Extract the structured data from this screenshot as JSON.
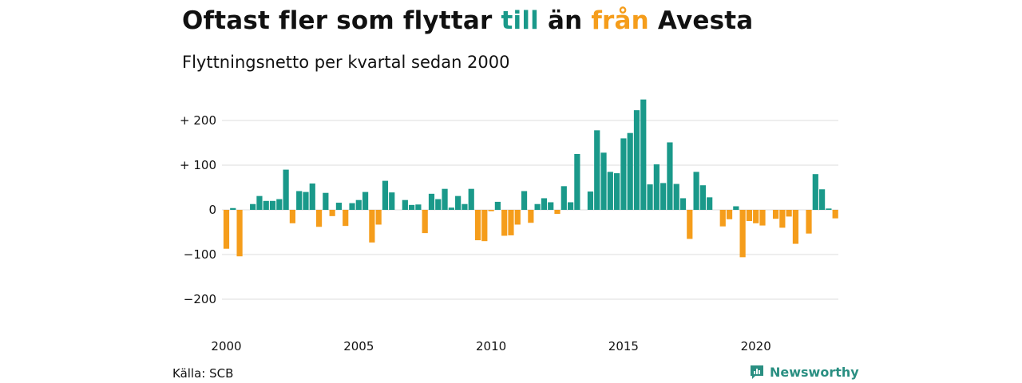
{
  "header": {
    "title_parts": [
      "Oftast fler som flyttar ",
      "till",
      " än ",
      "från",
      " Avesta"
    ],
    "subtitle": "Flyttningsnetto per kvartal sedan 2000"
  },
  "footer": {
    "source": "Källa: SCB",
    "brand": "Newsworthy"
  },
  "colors": {
    "positive": "#1a998a",
    "negative": "#f59d1b",
    "brand": "#2a8f82",
    "grid": "#dddddd",
    "text": "#111111"
  },
  "chart_data": {
    "type": "bar",
    "start_year": 2000,
    "x_ticks": [
      "2000",
      "2005",
      "2010",
      "2015",
      "2020"
    ],
    "y_ticks": [
      {
        "value": 200,
        "label": "+ 200"
      },
      {
        "value": 100,
        "label": "+ 100"
      },
      {
        "value": 0,
        "label": "0"
      },
      {
        "value": -100,
        "label": "−100"
      },
      {
        "value": -200,
        "label": "−200"
      }
    ],
    "ylim": [
      -200,
      250
    ],
    "grid": true,
    "values": [
      -87,
      4,
      -104,
      0,
      13,
      31,
      20,
      20,
      24,
      90,
      -30,
      42,
      40,
      59,
      -38,
      38,
      -14,
      16,
      -36,
      15,
      22,
      40,
      -73,
      -33,
      65,
      39,
      0,
      22,
      11,
      12,
      -52,
      36,
      24,
      47,
      5,
      31,
      13,
      47,
      -68,
      -70,
      -3,
      18,
      -58,
      -57,
      -33,
      42,
      -29,
      13,
      26,
      17,
      -9,
      53,
      17,
      125,
      0,
      41,
      178,
      128,
      85,
      82,
      160,
      172,
      223,
      247,
      57,
      102,
      60,
      151,
      58,
      26,
      -65,
      85,
      55,
      28,
      0,
      -37,
      -21,
      8,
      -106,
      -25,
      -30,
      -35,
      0,
      -20,
      -40,
      -15,
      -76,
      0,
      -53,
      80,
      46,
      3,
      -19
    ]
  }
}
